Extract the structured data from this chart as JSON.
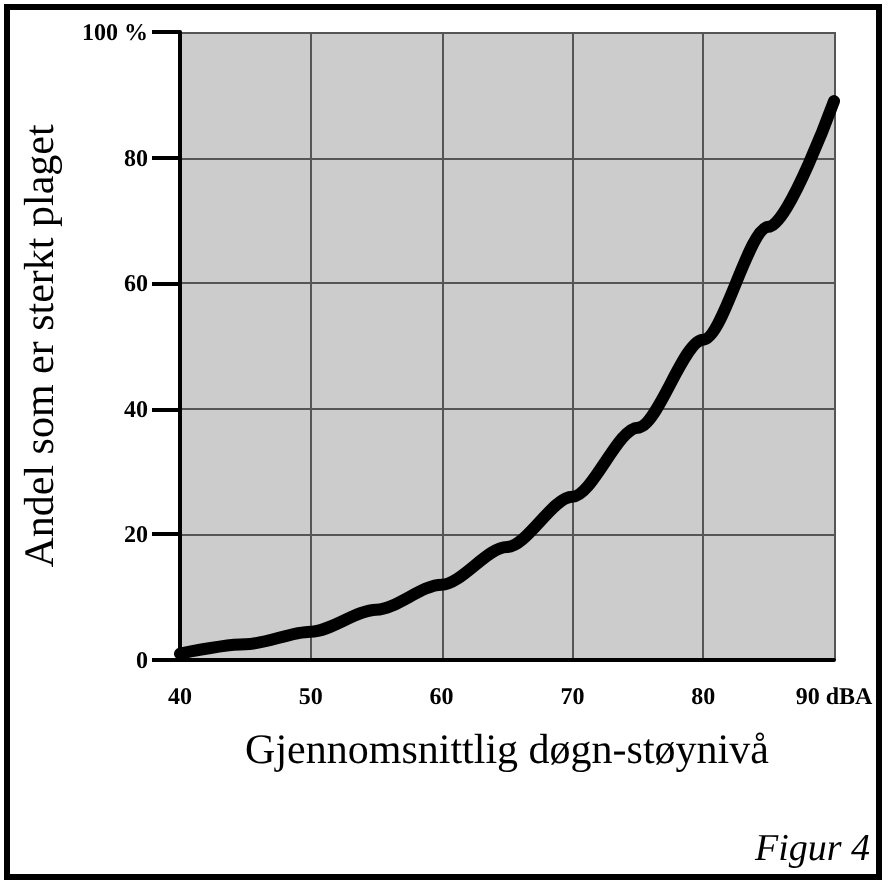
{
  "chart_data": {
    "type": "line",
    "xlabel": "Gjennomsnittlig døgn-støynivå",
    "ylabel": "Andel som er sterkt plaget",
    "x": [
      40,
      45,
      50,
      55,
      60,
      65,
      70,
      75,
      80,
      85,
      90
    ],
    "series": [
      {
        "color": "#000000",
        "values": [
          1,
          2.5,
          4.5,
          8,
          12,
          18,
          26,
          37,
          51,
          69,
          89
        ]
      }
    ],
    "xlim": [
      40,
      90
    ],
    "xticks": [
      40,
      50,
      60,
      70,
      80,
      {
        "value": 90,
        "label": "90 dBA"
      }
    ],
    "ylim": [
      0,
      100
    ],
    "yticks": [
      0,
      20,
      40,
      60,
      80,
      {
        "value": 100,
        "label": "100 %"
      }
    ],
    "grid": true,
    "marker": "none",
    "line_style": "solid",
    "annotations": [
      "Figur 4"
    ]
  }
}
